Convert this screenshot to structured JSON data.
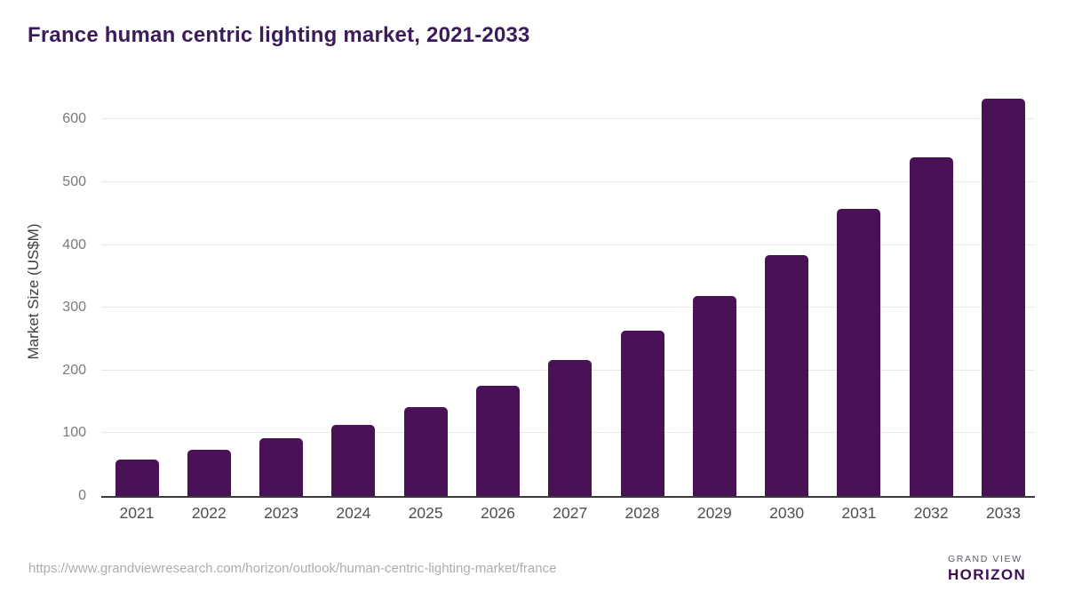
{
  "header": {
    "title": "France human centric lighting market, 2021-2033"
  },
  "chart_data": {
    "type": "bar",
    "title": "France human centric lighting market, 2021-2033",
    "categories": [
      "2021",
      "2022",
      "2023",
      "2024",
      "2025",
      "2026",
      "2027",
      "2028",
      "2029",
      "2030",
      "2031",
      "2032",
      "2033"
    ],
    "values": [
      58,
      73,
      92,
      114,
      141,
      175,
      216,
      263,
      318,
      384,
      458,
      540,
      633
    ],
    "xlabel": "",
    "ylabel": "Market Size (US$M)",
    "ylim": [
      0,
      650
    ],
    "yticks": [
      0,
      100,
      200,
      300,
      400,
      500,
      600
    ],
    "grid": true,
    "legend": "none",
    "bar_color": "#4a1157"
  },
  "colors": {
    "bar": "#4a1157",
    "title": "#3c1b5a",
    "gridline": "#e7e7e7",
    "axis_line": "#3a3a3a",
    "y_tick_label": "#7a7a7a",
    "x_tick_label": "#4f4f4f",
    "url_text": "#adadad",
    "logo_purple": "#2e2145",
    "logo_blue": "#5ec7ef",
    "logo_brand_text": "#3a1053"
  },
  "footer": {
    "source_url": "https://www.grandviewresearch.com/horizon/outlook/human-centric-lighting-market/france",
    "logo": {
      "brand_top": "GRAND VIEW",
      "brand_bottom": "HORIZON"
    }
  }
}
